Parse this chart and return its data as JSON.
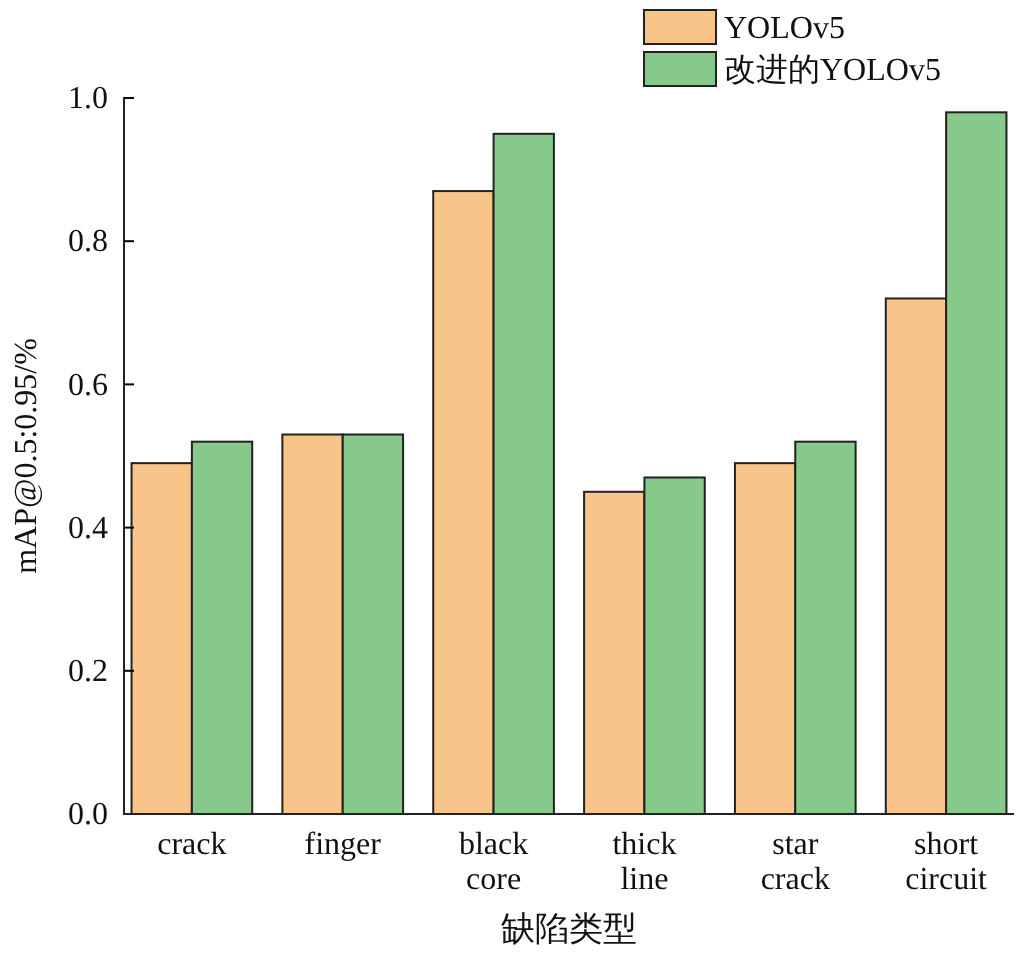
{
  "chart_data": {
    "type": "bar",
    "xlabel": "缺陷类型",
    "ylabel": "mAP@0.5:0.95/%",
    "categories": [
      "crack",
      "finger",
      "black core",
      "thick line",
      "star crack",
      "short circuit"
    ],
    "series": [
      {
        "name": "YOLOv5",
        "color": "#f9c48a",
        "values": [
          0.49,
          0.53,
          0.87,
          0.45,
          0.49,
          0.72
        ]
      },
      {
        "name": "改进的YOLOv5",
        "color": "#86c98a",
        "values": [
          0.52,
          0.53,
          0.95,
          0.47,
          0.52,
          0.98
        ]
      }
    ],
    "ylim": [
      0,
      1
    ],
    "yticks": [
      {
        "value": 0,
        "label": "0.0"
      },
      0.2,
      0.4,
      0.6,
      0.8,
      {
        "value": 1,
        "label": "1.0"
      }
    ],
    "grid": false,
    "legend": "top right"
  }
}
